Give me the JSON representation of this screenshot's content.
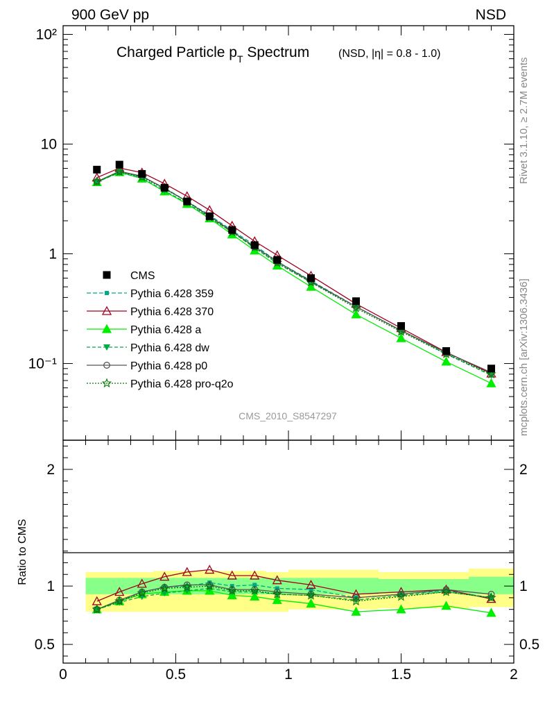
{
  "header": {
    "left": "900 GeV pp",
    "right": "NSD",
    "side_top": "Rivet 3.1.10, ≥ 2.7M events",
    "side_bottom": "mcplots.cern.ch [arXiv:1306.3436]"
  },
  "chart_data": [
    {
      "type": "line",
      "title": "Charged Particle p",
      "title_sub": "T",
      "title_rest": " Spectrum",
      "title_note": "(NSD, |η| = 0.8 - 1.0)",
      "watermark": "CMS_2010_S8547297",
      "xlim": [
        0,
        2
      ],
      "ylim": [
        0.02,
        120
      ],
      "yscale": "log",
      "ytick_labels": [
        "10⁻¹",
        "1",
        "10",
        "10²"
      ],
      "x": [
        0.15,
        0.25,
        0.35,
        0.45,
        0.55,
        0.65,
        0.75,
        0.85,
        0.95,
        1.1,
        1.3,
        1.5,
        1.7,
        1.9
      ],
      "data": {
        "name": "CMS",
        "values": [
          5.85,
          6.5,
          5.35,
          4.0,
          3.0,
          2.2,
          1.65,
          1.2,
          0.88,
          0.6,
          0.37,
          0.22,
          0.13,
          0.09
        ]
      },
      "series": [
        {
          "name": "Pythia 6.428 359",
          "color": "#00a88c",
          "dash": "6,3",
          "marker": "square-small",
          "values": [
            4.5,
            5.6,
            5.05,
            3.98,
            3.01,
            2.25,
            1.63,
            1.2,
            0.85,
            0.57,
            0.33,
            0.2,
            0.125,
            0.081
          ]
        },
        {
          "name": "Pythia 6.428 370",
          "color": "#a0001e",
          "dash": "",
          "marker": "triangle-open",
          "values": [
            4.95,
            6.05,
            5.5,
            4.35,
            3.35,
            2.5,
            1.8,
            1.3,
            0.97,
            0.63,
            0.35,
            0.21,
            0.127,
            0.081
          ]
        },
        {
          "name": "Pythia 6.428 a",
          "color": "#00ee00",
          "dash": "",
          "marker": "triangle",
          "values": [
            4.5,
            5.55,
            4.85,
            3.7,
            2.85,
            2.1,
            1.5,
            1.07,
            0.78,
            0.5,
            0.28,
            0.17,
            0.104,
            0.066
          ]
        },
        {
          "name": "Pythia 6.428 dw",
          "color": "#00aa44",
          "dash": "5,3",
          "marker": "triangle-down",
          "values": [
            4.5,
            5.5,
            4.9,
            3.75,
            2.9,
            2.12,
            1.58,
            1.13,
            0.82,
            0.55,
            0.33,
            0.2,
            0.122,
            0.078
          ]
        },
        {
          "name": "Pythia 6.428 p0",
          "color": "#555555",
          "dash": "",
          "marker": "circle-open",
          "values": [
            4.55,
            5.65,
            5.1,
            3.95,
            3.0,
            2.2,
            1.6,
            1.16,
            0.85,
            0.56,
            0.33,
            0.2,
            0.126,
            0.083
          ]
        },
        {
          "name": "Pythia 6.428 pro-q2o",
          "color": "#007700",
          "dash": "2,2",
          "marker": "star-open",
          "values": [
            4.55,
            5.6,
            5.0,
            3.9,
            3.0,
            2.15,
            1.58,
            1.15,
            0.83,
            0.55,
            0.32,
            0.195,
            0.122,
            0.08
          ]
        }
      ]
    },
    {
      "type": "line",
      "ylabel": "Ratio to CMS",
      "xlim": [
        0,
        2
      ],
      "ylim": [
        0.34,
        2.25
      ],
      "ytick_labels": [
        "0.5",
        "1",
        "2"
      ],
      "xtick_labels": [
        "0",
        "0.5",
        "1",
        "1.5",
        "2"
      ],
      "bands": {
        "edges": [
          0.1,
          0.2,
          0.3,
          0.4,
          0.5,
          0.6,
          0.7,
          0.8,
          0.9,
          1.0,
          1.2,
          1.4,
          1.6,
          1.8,
          2.0
        ],
        "outer_color": "#ffff88",
        "inner_color": "#88ff88",
        "outer_lo": [
          0.78,
          0.78,
          0.78,
          0.78,
          0.78,
          0.78,
          0.78,
          0.78,
          0.78,
          0.8,
          0.8,
          0.81,
          0.81,
          0.82
        ],
        "outer_hi": [
          1.12,
          1.12,
          1.12,
          1.13,
          1.13,
          1.13,
          1.13,
          1.13,
          1.12,
          1.14,
          1.14,
          1.12,
          1.12,
          1.15
        ],
        "inner_lo": [
          0.93,
          0.93,
          0.93,
          0.93,
          0.93,
          0.93,
          0.93,
          0.93,
          0.93,
          0.93,
          0.93,
          0.94,
          0.94,
          0.93
        ],
        "inner_hi": [
          1.07,
          1.07,
          1.07,
          1.07,
          1.07,
          1.07,
          1.07,
          1.07,
          1.07,
          1.07,
          1.07,
          1.06,
          1.06,
          1.08
        ]
      },
      "x": [
        0.15,
        0.25,
        0.35,
        0.45,
        0.55,
        0.65,
        0.75,
        0.85,
        0.95,
        1.1,
        1.3,
        1.5,
        1.7,
        1.9
      ],
      "series": [
        {
          "name": "Pythia 6.428 359",
          "values": [
            0.8,
            0.87,
            0.95,
            0.99,
            1.0,
            1.03,
            1.0,
            1.01,
            0.98,
            0.97,
            0.9,
            0.93,
            0.96,
            0.9
          ]
        },
        {
          "name": "Pythia 6.428 370",
          "values": [
            0.87,
            0.95,
            1.02,
            1.08,
            1.12,
            1.14,
            1.09,
            1.09,
            1.05,
            1.01,
            0.93,
            0.95,
            0.97,
            0.89
          ]
        },
        {
          "name": "Pythia 6.428 a",
          "values": [
            0.8,
            0.87,
            0.93,
            0.95,
            0.96,
            0.96,
            0.92,
            0.91,
            0.88,
            0.85,
            0.78,
            0.8,
            0.83,
            0.77
          ]
        },
        {
          "name": "Pythia 6.428 dw",
          "values": [
            0.8,
            0.86,
            0.91,
            0.94,
            0.96,
            0.98,
            0.95,
            0.95,
            0.93,
            0.92,
            0.88,
            0.92,
            0.95,
            0.9
          ]
        },
        {
          "name": "Pythia 6.428 p0",
          "values": [
            0.8,
            0.88,
            0.95,
            0.99,
            1.01,
            1.01,
            0.97,
            0.97,
            0.95,
            0.93,
            0.9,
            0.93,
            0.97,
            0.93
          ]
        },
        {
          "name": "Pythia 6.428 pro-q2o",
          "values": [
            0.8,
            0.87,
            0.94,
            0.98,
            0.99,
            1.0,
            0.96,
            0.96,
            0.93,
            0.92,
            0.87,
            0.91,
            0.95,
            0.9
          ]
        }
      ]
    }
  ]
}
